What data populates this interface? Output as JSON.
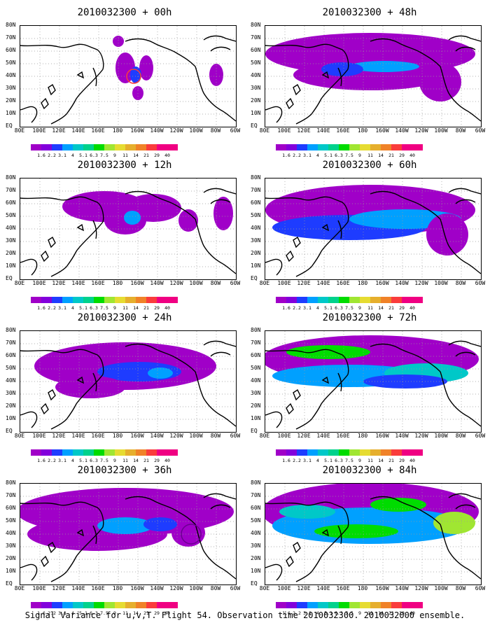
{
  "caption": "Signal Variance for u,v,T. Flight 54. Observation time 2010032300. 2010032000 ensemble.",
  "panels": [
    {
      "title": "2010032300 + 00h"
    },
    {
      "title": "2010032300 + 48h"
    },
    {
      "title": "2010032300 + 12h"
    },
    {
      "title": "2010032300 + 60h"
    },
    {
      "title": "2010032300 + 24h"
    },
    {
      "title": "2010032300 + 72h"
    },
    {
      "title": "2010032300 + 36h"
    },
    {
      "title": "2010032300 + 84h"
    }
  ],
  "lat_labels": [
    "80N",
    "70N",
    "60N",
    "50N",
    "40N",
    "30N",
    "20N",
    "10N",
    "EQ"
  ],
  "lon_labels": [
    "80E",
    "100E",
    "120E",
    "140E",
    "160E",
    "180",
    "160W",
    "140W",
    "120W",
    "100W",
    "80W",
    "60W"
  ],
  "colorbar": {
    "labels": [
      "1.6",
      "2.2",
      "3.1",
      "4",
      "5.1",
      "6.3",
      "7.5",
      "9",
      "11",
      "14",
      "21",
      "29",
      "40"
    ],
    "colors": [
      "#a000c8",
      "#8200dc",
      "#1e3cff",
      "#00a0ff",
      "#00c8c8",
      "#00d28c",
      "#00dc00",
      "#a0e632",
      "#e6dc32",
      "#e6af2d",
      "#f08228",
      "#fa3c3c",
      "#f00082"
    ]
  },
  "legend_note": "colors",
  "palette": {
    "level_purple": "#a000c8",
    "level_violet": "#8200dc",
    "level_blue": "#1e3cff",
    "level_lightblue": "#00a0ff",
    "level_cyan": "#00c8c8",
    "level_teal": "#00d28c",
    "level_green": "#00dc00",
    "level_yellowgreen": "#a0e632",
    "level_yellow": "#e6dc32",
    "coastline": "#000000",
    "grid": "#999999"
  }
}
